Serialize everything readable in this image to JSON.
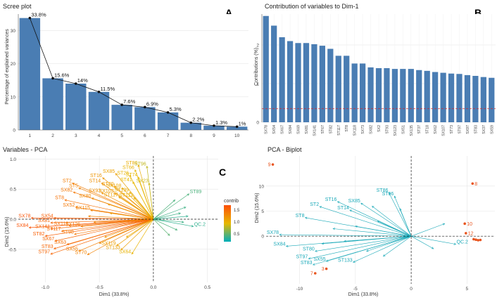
{
  "panels": {
    "scree": {
      "title": "Scree plot",
      "letter": "A",
      "ylabel": "Percentage of explained variances",
      "bar_color": "#4A7DB3"
    },
    "contrib": {
      "title": "Contribution of variables to Dim-1",
      "letter": "B",
      "ylabel": "Contributions (%)",
      "bar_color": "#4A7DB3",
      "ref_line_color": "#d62728"
    },
    "vars": {
      "title": "Variables - PCA",
      "letter": "C",
      "xlabel": "Dim1 (33.8%)",
      "ylabel": "Dim2 (15.6%)",
      "legend_title": "contrib",
      "legend_ticks": [
        "1.5",
        "1.0",
        "0.5"
      ],
      "gradient": [
        "#00AFBB",
        "#E7B800",
        "#FC4E07"
      ]
    },
    "biplot": {
      "title": "PCA - Biplot",
      "letter": "D",
      "xlabel": "Dim1 (33.8%)",
      "ylabel": "Dim2 (15.6%)",
      "var_color": "#1AA9B8",
      "ind_color": "#E8541E"
    }
  },
  "chart_data": [
    {
      "type": "bar",
      "title": "Scree plot",
      "xlabel": "",
      "ylabel": "Percentage of explained variances",
      "categories": [
        "1",
        "2",
        "3",
        "4",
        "5",
        "6",
        "7",
        "8",
        "9",
        "10"
      ],
      "values": [
        33.8,
        15.6,
        14.0,
        11.5,
        7.6,
        6.9,
        5.3,
        2.2,
        1.3,
        1.0
      ],
      "data_labels": [
        "33.8%",
        "15.6%",
        "14%",
        "11.5%",
        "7.6%",
        "6.9%",
        "5.3%",
        "2.2%",
        "1.3%",
        "1%"
      ],
      "ylim": [
        0,
        35
      ],
      "yticks": [
        0,
        10,
        20,
        30
      ],
      "overlay": "line"
    },
    {
      "type": "bar",
      "title": "Contribution of variables to Dim-1",
      "ylabel": "Contributions (%)",
      "categories": [
        "SX78",
        "SX54",
        "SX67",
        "SX84",
        "SX69",
        "SX81",
        "SX141",
        "ST67",
        "ST82",
        "ST117",
        "ST8",
        "SX118",
        "SX73",
        "SX82",
        "SX2",
        "ST93",
        "SX123",
        "SX51",
        "SX135",
        "ST37",
        "ST18",
        "SX62",
        "SX107",
        "ST73",
        "ST97",
        "SX97",
        "ST83",
        "SX37",
        "SX59"
      ],
      "values": [
        2.75,
        2.5,
        2.2,
        2.1,
        2.05,
        2.05,
        2.02,
        1.98,
        1.9,
        1.72,
        1.72,
        1.52,
        1.52,
        1.42,
        1.4,
        1.4,
        1.38,
        1.38,
        1.38,
        1.35,
        1.33,
        1.3,
        1.28,
        1.26,
        1.25,
        1.22,
        1.2,
        1.17,
        1.15
      ],
      "ylim": [
        0,
        2.8
      ],
      "yticks": [
        0,
        1,
        2
      ],
      "reference_line": 0.35
    },
    {
      "type": "scatter",
      "title": "Variables - PCA",
      "xlabel": "Dim1 (33.8%)",
      "ylabel": "Dim2 (15.6%)",
      "xlim": [
        -1.25,
        0.6
      ],
      "ylim": [
        -1.05,
        1.05
      ],
      "xticks": [
        -1.0,
        -0.5,
        0.0,
        0.5
      ],
      "xtick_labels": [
        "-1.0",
        "-0.5",
        "0.0",
        "0.5"
      ],
      "yticks": [
        1.0,
        0.5,
        0.0,
        -0.5
      ],
      "ytick_labels": [
        "1.0",
        "0.5",
        "0.0",
        "-0.5"
      ],
      "arrows": [
        {
          "label": "ST86",
          "x": -0.14,
          "y": 0.9,
          "c": 1.0
        },
        {
          "label": "ST96",
          "x": -0.06,
          "y": 0.88,
          "c": 0.75
        },
        {
          "label": "ST66",
          "x": -0.17,
          "y": 0.82,
          "c": 0.95
        },
        {
          "label": "SX85",
          "x": -0.35,
          "y": 0.76,
          "c": 1.1
        },
        {
          "label": "ST26",
          "x": -0.22,
          "y": 0.73,
          "c": 0.95
        },
        {
          "label": "ST74",
          "x": -0.14,
          "y": 0.7,
          "c": 0.9
        },
        {
          "label": "SX23",
          "x": -0.04,
          "y": 0.6,
          "c": 0.8
        },
        {
          "label": "ST41",
          "x": -0.19,
          "y": 0.62,
          "c": 0.9
        },
        {
          "label": "ST16",
          "x": -0.47,
          "y": 0.69,
          "c": 1.2
        },
        {
          "label": "ST14",
          "x": -0.48,
          "y": 0.6,
          "c": 1.25
        },
        {
          "label": "ST20",
          "x": -0.36,
          "y": 0.55,
          "c": 1.15
        },
        {
          "label": "SX108",
          "x": -0.29,
          "y": 0.52,
          "c": 1.05
        },
        {
          "label": "ST2",
          "x": -0.75,
          "y": 0.6,
          "c": 1.4
        },
        {
          "label": "ST5",
          "x": -0.69,
          "y": 0.52,
          "c": 1.35
        },
        {
          "label": "SX82",
          "x": -0.74,
          "y": 0.45,
          "c": 1.45
        },
        {
          "label": "SX93",
          "x": -0.48,
          "y": 0.44,
          "c": 1.25
        },
        {
          "label": "SX103",
          "x": -0.36,
          "y": 0.43,
          "c": 1.15
        },
        {
          "label": "ST8",
          "x": -0.82,
          "y": 0.32,
          "c": 1.5
        },
        {
          "label": "SX80",
          "x": -0.57,
          "y": 0.35,
          "c": 1.3
        },
        {
          "label": "SX52",
          "x": -0.72,
          "y": 0.2,
          "c": 1.45
        },
        {
          "label": "SX115",
          "x": -0.58,
          "y": 0.15,
          "c": 1.35
        },
        {
          "label": "ST117",
          "x": -0.32,
          "y": 0.37,
          "c": 1.1
        },
        {
          "label": "ST112",
          "x": -0.18,
          "y": 0.36,
          "c": 0.95
        },
        {
          "label": "ST139",
          "x": -0.22,
          "y": 0.45,
          "c": 1.0
        },
        {
          "label": "SX78",
          "x": -1.13,
          "y": 0.02,
          "c": 1.75
        },
        {
          "label": "SX54",
          "x": -0.92,
          "y": 0.02,
          "c": 1.65
        },
        {
          "label": "SX81",
          "x": -0.95,
          "y": -0.06,
          "c": 1.6
        },
        {
          "label": "SX84",
          "x": -1.15,
          "y": -0.14,
          "c": 1.75
        },
        {
          "label": "SX141",
          "x": -0.95,
          "y": -0.16,
          "c": 1.6
        },
        {
          "label": "SX118",
          "x": -0.78,
          "y": -0.11,
          "c": 1.5
        },
        {
          "label": "SX126",
          "x": -0.67,
          "y": -0.12,
          "c": 1.4
        },
        {
          "label": "ST117",
          "x": -0.85,
          "y": -0.2,
          "c": 1.55
        },
        {
          "label": "ST82",
          "x": -1.0,
          "y": -0.28,
          "c": 1.65
        },
        {
          "label": "ST98",
          "x": -0.73,
          "y": -0.25,
          "c": 1.45
        },
        {
          "label": "SX67",
          "x": -0.91,
          "y": -0.36,
          "c": 1.6
        },
        {
          "label": "SX63",
          "x": -0.8,
          "y": -0.42,
          "c": 1.5
        },
        {
          "label": "ST83",
          "x": -0.92,
          "y": -0.49,
          "c": 1.6
        },
        {
          "label": "ST97",
          "x": -0.95,
          "y": -0.58,
          "c": 1.6
        },
        {
          "label": "SX55",
          "x": -0.69,
          "y": -0.53,
          "c": 1.4
        },
        {
          "label": "ST70",
          "x": -0.61,
          "y": -0.59,
          "c": 1.35
        },
        {
          "label": "ST133",
          "x": -0.3,
          "y": -0.51,
          "c": 1.1
        },
        {
          "label": "SX119",
          "x": -0.34,
          "y": -0.44,
          "c": 1.1
        },
        {
          "label": "SX64",
          "x": -0.2,
          "y": -0.58,
          "c": 0.95
        },
        {
          "label": "ST89",
          "x": 0.33,
          "y": 0.42,
          "c": 0.3
        },
        {
          "label": "QC.2",
          "x": 0.37,
          "y": -0.12,
          "c": 0.2
        },
        {
          "label": "",
          "x": 0.3,
          "y": 0.2,
          "c": 0.25
        },
        {
          "label": "",
          "x": 0.25,
          "y": 0.1,
          "c": 0.25
        },
        {
          "label": "",
          "x": 0.28,
          "y": -0.05,
          "c": 0.25
        },
        {
          "label": "",
          "x": 0.22,
          "y": -0.18,
          "c": 0.3
        },
        {
          "label": "",
          "x": 0.2,
          "y": 0.32,
          "c": 0.3
        },
        {
          "label": "",
          "x": 0.15,
          "y": -0.27,
          "c": 0.35
        },
        {
          "label": "",
          "x": 0.32,
          "y": 0.05,
          "c": 0.2
        },
        {
          "label": "",
          "x": -0.45,
          "y": -0.3,
          "c": 1.2
        },
        {
          "label": "",
          "x": -0.55,
          "y": -0.05,
          "c": 1.3
        },
        {
          "label": "",
          "x": -0.4,
          "y": 0.1,
          "c": 1.15
        },
        {
          "label": "",
          "x": -0.5,
          "y": -0.4,
          "c": 1.3
        },
        {
          "label": "",
          "x": -0.25,
          "y": -0.3,
          "c": 1.0
        },
        {
          "label": "",
          "x": -0.6,
          "y": 0.05,
          "c": 1.35
        },
        {
          "label": "",
          "x": -0.42,
          "y": 0.25,
          "c": 1.2
        }
      ]
    },
    {
      "type": "scatter",
      "title": "PCA - Biplot",
      "xlabel": "Dim1 (33.8%)",
      "ylabel": "Dim2 (15.6%)",
      "xlim": [
        -13,
        7.5
      ],
      "ylim": [
        -9.5,
        16
      ],
      "xticks": [
        -10,
        -5,
        0,
        5
      ],
      "xtick_labels": [
        "-10",
        "-5",
        "0",
        "5"
      ],
      "yticks": [
        10,
        5,
        0
      ],
      "ytick_labels": [
        "10",
        "5",
        "0"
      ],
      "arrows": [
        {
          "label": "ST86",
          "x": -2.0,
          "y": 8.7
        },
        {
          "label": "ST96",
          "x": -1.5,
          "y": 8.0
        },
        {
          "label": "SX85",
          "x": -4.5,
          "y": 6.6
        },
        {
          "label": "ST16",
          "x": -6.6,
          "y": 6.9
        },
        {
          "label": "ST2",
          "x": -8.2,
          "y": 5.9
        },
        {
          "label": "ST14",
          "x": -5.5,
          "y": 5.2
        },
        {
          "label": "ST8",
          "x": -9.5,
          "y": 3.7
        },
        {
          "label": "SX78",
          "x": -11.8,
          "y": 0.3
        },
        {
          "label": "SX84",
          "x": -11.2,
          "y": -2.0
        },
        {
          "label": "ST80",
          "x": -8.6,
          "y": -3.0
        },
        {
          "label": "ST97",
          "x": -9.2,
          "y": -4.5
        },
        {
          "label": "SX55",
          "x": -7.6,
          "y": -5.0
        },
        {
          "label": "ST83",
          "x": -8.8,
          "y": -5.7
        },
        {
          "label": "ST133",
          "x": -5.2,
          "y": -5.2
        },
        {
          "label": "QC.2",
          "x": 4.0,
          "y": -1.6
        },
        {
          "label": "",
          "x": -3.0,
          "y": 3.0
        },
        {
          "label": "",
          "x": -6.0,
          "y": -1.0
        },
        {
          "label": "",
          "x": -4.0,
          "y": -3.0
        },
        {
          "label": "",
          "x": -7.0,
          "y": 1.5
        },
        {
          "label": "",
          "x": -2.5,
          "y": -4.0
        },
        {
          "label": "",
          "x": -5.0,
          "y": 2.0
        },
        {
          "label": "",
          "x": -8.0,
          "y": -1.5
        },
        {
          "label": "",
          "x": 3.0,
          "y": 2.5
        },
        {
          "label": "",
          "x": 2.0,
          "y": -2.5
        },
        {
          "label": "",
          "x": -3.5,
          "y": 6.0
        },
        {
          "label": "",
          "x": -1.0,
          "y": 5.5
        }
      ],
      "points": [
        {
          "label": "9",
          "x": -12.4,
          "y": 14.3
        },
        {
          "label": "8",
          "x": 5.5,
          "y": 10.5
        },
        {
          "label": "10",
          "x": 4.8,
          "y": 2.5
        },
        {
          "label": "12",
          "x": 4.9,
          "y": 0.6
        },
        {
          "label": "",
          "x": 5.6,
          "y": -0.6
        },
        {
          "label": "",
          "x": 5.8,
          "y": -0.7
        },
        {
          "label": "",
          "x": 6.0,
          "y": -0.8
        },
        {
          "label": "",
          "x": 6.2,
          "y": -0.75
        },
        {
          "label": "3",
          "x": -7.6,
          "y": -6.5
        },
        {
          "label": "7",
          "x": -8.6,
          "y": -7.4
        }
      ]
    }
  ]
}
